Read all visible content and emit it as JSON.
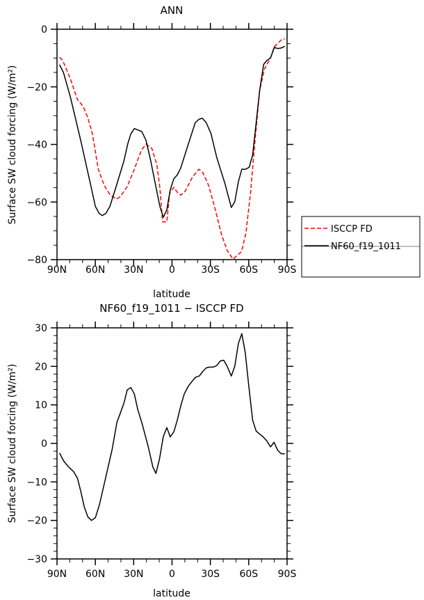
{
  "colors": {
    "isccp": "#ff0000",
    "model": "#000000",
    "axis": "#000000"
  },
  "chart_data": [
    {
      "type": "line",
      "title": "ANN",
      "xlabel": "latitude",
      "ylabel": "Surface SW cloud forcing (W/m²)",
      "xlim": [
        90,
        -90
      ],
      "ylim": [
        -80,
        0
      ],
      "xticks": [
        90,
        60,
        30,
        0,
        -30,
        -60,
        -90
      ],
      "xtick_labels": [
        "90N",
        "60N",
        "30N",
        "0",
        "30S",
        "60S",
        "90S"
      ],
      "yticks": [
        0,
        -20,
        -40,
        -60,
        -80
      ],
      "ytick_labels": [
        "0",
        "−20",
        "−40",
        "−60",
        "−80"
      ],
      "grid": false,
      "legend": {
        "placement": "right",
        "entries": [
          "ISCCP FD",
          "NF60_f19_1011"
        ]
      },
      "series": [
        {
          "name": "ISCCP FD",
          "style": "dashed",
          "color": "#ff0000",
          "x": [
            88.0,
            85.5,
            79.5,
            74.0,
            69.5,
            65.8,
            62.2,
            57.7,
            53.1,
            48.6,
            43.5,
            40.4,
            35.0,
            29.5,
            24.1,
            20.4,
            15.9,
            11.9,
            9.5,
            7.4,
            4.1,
            1.9,
            -1.4,
            -4.1,
            -6.8,
            -10.4,
            -15.9,
            -21.0,
            -24.1,
            -28.6,
            -33.2,
            -38.6,
            -43.1,
            -47.7,
            -51.3,
            -54.4,
            -57.7,
            -61.3,
            -64.9,
            -68.6,
            -72.2,
            -77.1,
            -80.0,
            -83.1,
            -85.8,
            -88.2
          ],
          "y": [
            -9.7,
            -10.9,
            -17.2,
            -24.4,
            -26.8,
            -30.9,
            -36.5,
            -48.6,
            -54.2,
            -57.4,
            -59.0,
            -58.1,
            -54.6,
            -48.6,
            -42.1,
            -39.9,
            -41.3,
            -46.9,
            -55.0,
            -66.9,
            -66.9,
            -57.0,
            -54.9,
            -56.6,
            -57.6,
            -56.2,
            -51.4,
            -48.6,
            -49.8,
            -54.2,
            -61.5,
            -71.1,
            -76.8,
            -79.8,
            -78.4,
            -77.2,
            -71.1,
            -57.4,
            -38.9,
            -21.2,
            -13.9,
            -9.9,
            -6.1,
            -4.7,
            -3.6,
            -3.3
          ]
        },
        {
          "name": "NF60_f19_1011",
          "style": "solid",
          "color": "#000000",
          "x": [
            88.0,
            84.9,
            79.5,
            71.3,
            64.0,
            60.0,
            57.1,
            54.6,
            51.7,
            48.6,
            44.0,
            37.7,
            34.6,
            32.2,
            29.5,
            23.7,
            20.4,
            16.8,
            13.2,
            9.5,
            6.8,
            4.1,
            1.4,
            -1.4,
            -4.1,
            -6.8,
            -12.3,
            -18.1,
            -21.0,
            -23.7,
            -26.8,
            -30.4,
            -35.0,
            -41.3,
            -46.4,
            -49.1,
            -51.9,
            -54.6,
            -57.7,
            -60.4,
            -63.1,
            -65.8,
            -68.6,
            -71.7,
            -74.0,
            -77.1,
            -80.0,
            -82.7,
            -85.5,
            -88.2
          ],
          "y": [
            -12.3,
            -15.1,
            -23.6,
            -38.9,
            -53.4,
            -61.5,
            -63.9,
            -64.7,
            -63.9,
            -61.5,
            -55.0,
            -45.8,
            -39.7,
            -36.3,
            -34.5,
            -35.5,
            -38.5,
            -45.4,
            -53.4,
            -61.5,
            -65.3,
            -62.7,
            -55.8,
            -51.9,
            -50.6,
            -48.2,
            -40.5,
            -32.5,
            -31.3,
            -30.9,
            -32.5,
            -36.1,
            -44.6,
            -53.4,
            -61.9,
            -59.9,
            -53.0,
            -48.6,
            -48.6,
            -47.9,
            -43.6,
            -32.5,
            -21.2,
            -12.2,
            -10.9,
            -9.9,
            -6.3,
            -6.7,
            -6.5,
            -5.9
          ]
        }
      ]
    },
    {
      "type": "line",
      "title": "NF60_f19_1011 − ISCCP FD",
      "xlabel": "latitude",
      "ylabel": "Surface SW cloud forcing (W/m²)",
      "xlim": [
        90,
        -90
      ],
      "ylim": [
        -30,
        30
      ],
      "xticks": [
        90,
        60,
        30,
        0,
        -30,
        -60,
        -90
      ],
      "xtick_labels": [
        "90N",
        "60N",
        "30N",
        "0",
        "30S",
        "60S",
        "90S"
      ],
      "yticks": [
        30,
        20,
        10,
        0,
        -10,
        -20,
        -30
      ],
      "ytick_labels": [
        "30",
        "20",
        "10",
        "0",
        "−10",
        "−20",
        "−30"
      ],
      "grid": false,
      "series": [
        {
          "name": "NF60_f19_1011 − ISCCP FD",
          "style": "solid",
          "color": "#000000",
          "x": [
            88.0,
            84.9,
            81.3,
            77.1,
            74.0,
            71.3,
            68.6,
            65.8,
            63.1,
            60.0,
            56.8,
            52.2,
            46.8,
            43.1,
            40.4,
            37.7,
            35.0,
            32.2,
            29.5,
            26.8,
            23.2,
            18.6,
            15.0,
            12.6,
            9.9,
            6.8,
            4.1,
            1.4,
            -1.4,
            -4.1,
            -6.8,
            -9.5,
            -12.6,
            -15.9,
            -18.6,
            -21.3,
            -24.1,
            -26.8,
            -29.5,
            -32.3,
            -35.0,
            -37.7,
            -40.4,
            -43.1,
            -46.4,
            -49.1,
            -51.9,
            -54.6,
            -57.3,
            -60.0,
            -63.1,
            -65.8,
            -68.6,
            -71.3,
            -74.0,
            -77.1,
            -79.8,
            -82.7,
            -85.5,
            -88.2
          ],
          "y": [
            -2.5,
            -4.5,
            -6.0,
            -7.3,
            -9.0,
            -12.6,
            -16.6,
            -19.1,
            -20.0,
            -19.3,
            -15.9,
            -9.3,
            -1.5,
            5.5,
            7.9,
            10.4,
            13.9,
            14.5,
            12.8,
            8.8,
            4.9,
            -0.9,
            -6.1,
            -7.8,
            -4.2,
            1.8,
            4.1,
            1.7,
            3.0,
            6.0,
            9.7,
            12.8,
            14.8,
            16.2,
            17.2,
            17.5,
            18.7,
            19.6,
            19.8,
            19.8,
            20.2,
            21.4,
            21.6,
            20.0,
            17.5,
            20.0,
            25.9,
            28.5,
            23.5,
            15.1,
            6.0,
            3.2,
            2.4,
            1.7,
            0.7,
            -0.9,
            0.3,
            -1.8,
            -2.7,
            -2.7
          ]
        }
      ]
    }
  ]
}
